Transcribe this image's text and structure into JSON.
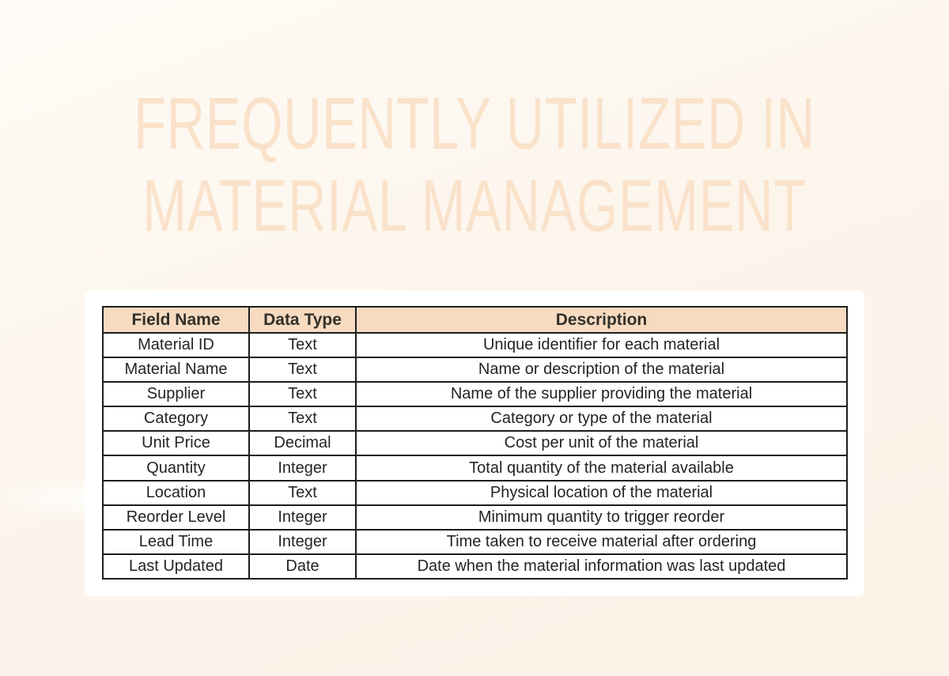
{
  "page": {
    "background_color": "#fcf5ec"
  },
  "hero": {
    "title_line1": "FREQUENTLY UTILIZED IN",
    "title_line2": "MATERIAL MANAGEMENT",
    "title_color": "#fae2ca"
  },
  "table": {
    "header_bg": "#f6dbc1",
    "border_color": "#1d1d1d",
    "columns": [
      "Field Name",
      "Data Type",
      "Description"
    ],
    "rows": [
      {
        "field": "Material ID",
        "type": "Text",
        "description": "Unique identifier for each material"
      },
      {
        "field": "Material Name",
        "type": "Text",
        "description": "Name or description of the material"
      },
      {
        "field": "Supplier",
        "type": "Text",
        "description": "Name of the supplier providing the material"
      },
      {
        "field": "Category",
        "type": "Text",
        "description": "Category or type of the material"
      },
      {
        "field": "Unit Price",
        "type": "Decimal",
        "description": "Cost per unit of the material"
      },
      {
        "field": "Quantity",
        "type": "Integer",
        "description": "Total quantity of the material available"
      },
      {
        "field": "Location",
        "type": "Text",
        "description": "Physical location of the material"
      },
      {
        "field": "Reorder Level",
        "type": "Integer",
        "description": "Minimum quantity to trigger reorder"
      },
      {
        "field": "Lead Time",
        "type": "Integer",
        "description": "Time taken to receive material after ordering"
      },
      {
        "field": "Last Updated",
        "type": "Date",
        "description": "Date when the material information was last updated"
      }
    ]
  }
}
